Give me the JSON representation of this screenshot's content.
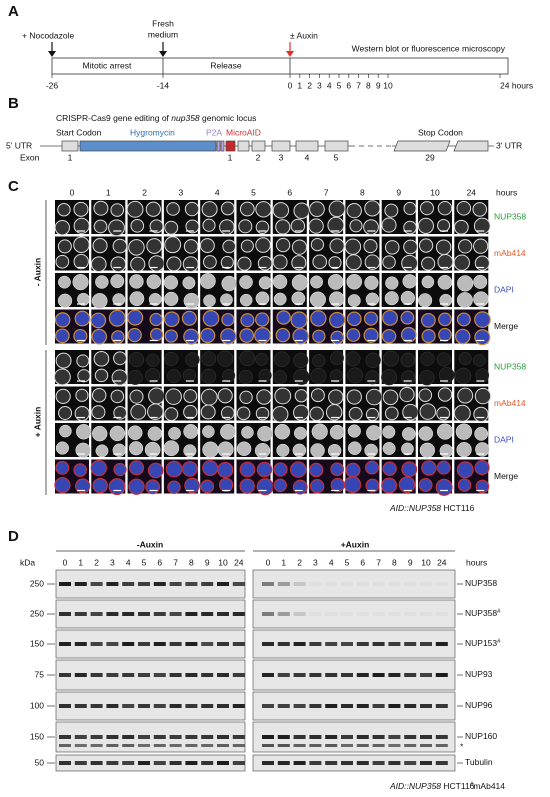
{
  "panel_a": {
    "label": "A",
    "nocodazole": "+ Nocodazole",
    "fresh_medium": [
      "Fresh",
      "medium"
    ],
    "auxin": "± Auxin",
    "phases": [
      "Mitotic arrest",
      "Release"
    ],
    "readout": "Western blot or fluorescence microscopy",
    "timepoints": [
      "-26",
      "-14",
      "0",
      "1",
      "2",
      "3",
      "4",
      "5",
      "6",
      "7",
      "8",
      "9",
      "10",
      "24 hours"
    ]
  },
  "panel_b": {
    "label": "B",
    "title": [
      "CRISPR-Cas9 gene editing of ",
      "nup358",
      " genomic locus"
    ],
    "utr5": "5' UTR",
    "utr3": "3' UTR",
    "start_codon": "Start Codon",
    "hygromycin": "Hygromycin",
    "p2a": "P2A",
    "microaid": "MicroAID",
    "stop_codon": "Stop Codon",
    "exon": "Exon",
    "exon_numbers": [
      "1",
      "1",
      "2",
      "3",
      "4",
      "5",
      "29"
    ]
  },
  "panel_c": {
    "label": "C",
    "timepoints": [
      "0",
      "1",
      "2",
      "3",
      "4",
      "5",
      "6",
      "7",
      "8",
      "9",
      "10",
      "24"
    ],
    "hours": "hours",
    "conditions": [
      {
        "name": "- Auxin",
        "channels": [
          "NUP358",
          "mAb414",
          "DAPI",
          "Merge"
        ]
      },
      {
        "name": "+ Auxin",
        "channels": [
          "NUP358",
          "mAb414",
          "DAPI",
          "Merge"
        ]
      }
    ],
    "footer": [
      "AID::NUP358",
      " HCT116"
    ]
  },
  "panel_d": {
    "label": "D",
    "conditions": [
      "-Auxin",
      "+Auxin"
    ],
    "kda": "kDa",
    "timepoints": [
      "0",
      "1",
      "2",
      "3",
      "4",
      "5",
      "6",
      "7",
      "8",
      "9",
      "10",
      "24"
    ],
    "hours": "hours",
    "blots": [
      {
        "marker": "250",
        "target": "NUP358"
      },
      {
        "marker": "250",
        "target": "NUP358",
        "superscript": "#"
      },
      {
        "marker": "150",
        "target": "NUP153",
        "superscript": "#"
      },
      {
        "marker": "75",
        "target": "NUP93"
      },
      {
        "marker": "100",
        "target": "NUP96"
      },
      {
        "marker": "150",
        "target": "NUP160",
        "note": "*"
      },
      {
        "marker": "50",
        "target": "Tubulin"
      }
    ],
    "footer": [
      "AID::NUP358",
      " HCT116"
    ],
    "footnote": [
      "#",
      "mAb414"
    ]
  }
}
